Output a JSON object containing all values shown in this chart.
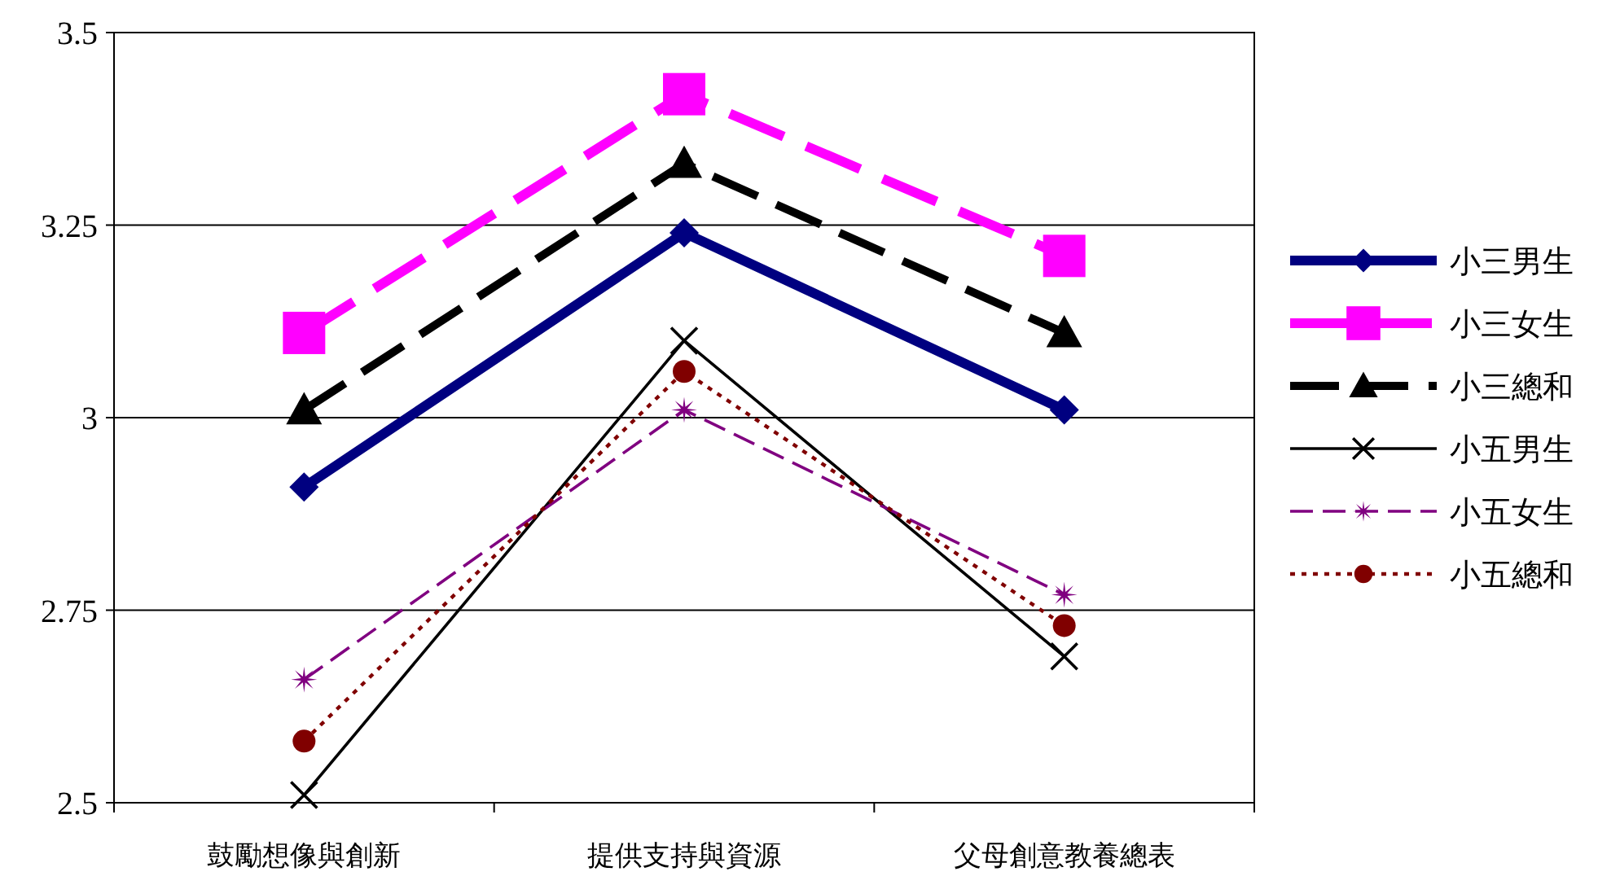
{
  "chart_data": {
    "type": "line",
    "categories": [
      "鼓勵想像與創新",
      "提供支持與資源",
      "父母創意教養總表"
    ],
    "ylim": [
      2.5,
      3.5
    ],
    "yticks": [
      2.5,
      2.75,
      3,
      3.25,
      3.5
    ],
    "grid": "y",
    "legend": "right",
    "series": [
      {
        "name": "小三男生",
        "color": "#000080",
        "values": [
          2.91,
          3.24,
          3.01
        ],
        "marker": "diamond",
        "line_style": "solid"
      },
      {
        "name": "小三女生",
        "color": "#ff00ff",
        "values": [
          3.11,
          3.42,
          3.21
        ],
        "marker": "square",
        "line_style": "dashed"
      },
      {
        "name": "小三總和",
        "color": "#000000",
        "values": [
          3.01,
          3.33,
          3.11
        ],
        "marker": "triangle",
        "line_style": "dashed"
      },
      {
        "name": "小五男生",
        "color": "#000000",
        "values": [
          2.51,
          3.1,
          2.69
        ],
        "marker": "cross",
        "line_style": "solid"
      },
      {
        "name": "小五女生",
        "color": "#800080",
        "values": [
          2.66,
          3.01,
          2.77
        ],
        "marker": "star",
        "line_style": "dashed"
      },
      {
        "name": "小五總和",
        "color": "#800000",
        "values": [
          2.58,
          3.06,
          2.73
        ],
        "marker": "circle",
        "line_style": "dotted"
      }
    ]
  }
}
